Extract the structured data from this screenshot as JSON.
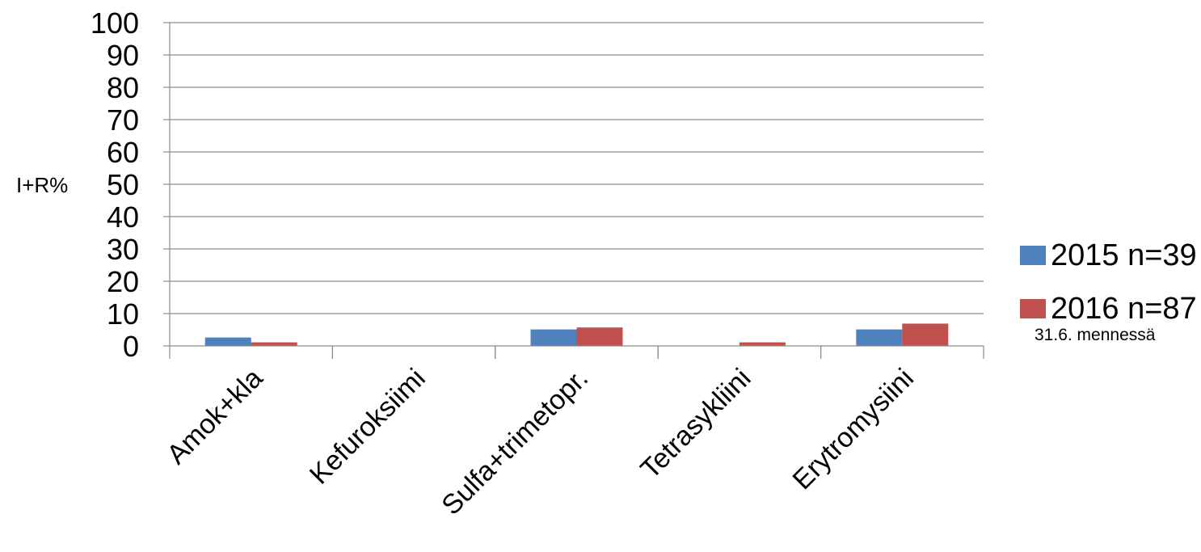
{
  "chart_data": {
    "type": "bar",
    "ylabel": "I+R%",
    "ylim": [
      0,
      100
    ],
    "yticks": [
      0,
      10,
      20,
      30,
      40,
      50,
      60,
      70,
      80,
      90,
      100
    ],
    "grid": true,
    "legend_position": "right",
    "categories": [
      "Amok+kla",
      "Kefuroksiimi",
      "Sulfa+trimetopr.",
      "Tetrasykliini",
      "Erytromysiini"
    ],
    "series": [
      {
        "name": "2015 n=39",
        "color": "#4f81bd",
        "values": [
          2.6,
          0,
          5.1,
          0,
          5.1
        ]
      },
      {
        "name": "2016 n=87",
        "color": "#c0504d",
        "values": [
          1.1,
          0,
          5.7,
          1.1,
          6.9
        ]
      }
    ],
    "legend_note": "31.6. mennessä"
  }
}
